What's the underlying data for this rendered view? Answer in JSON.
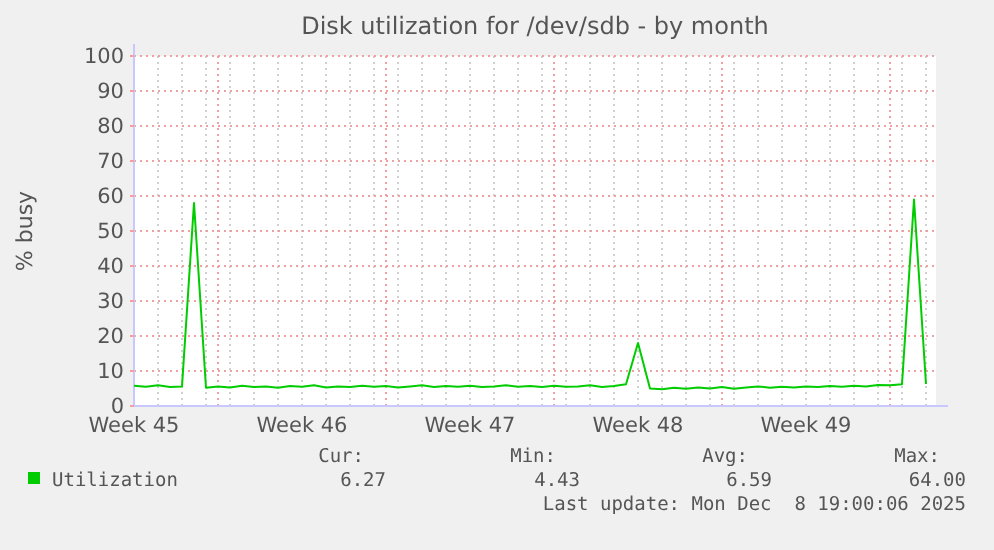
{
  "chart_data": {
    "type": "line",
    "title": "Disk utilization for /dev/sdb - by month",
    "ylabel": "% busy",
    "categories": [
      "Week 45",
      null,
      null,
      null,
      null,
      null,
      null,
      null,
      null,
      null,
      null,
      null,
      null,
      null,
      "Week 46",
      null,
      null,
      null,
      null,
      null,
      null,
      null,
      null,
      null,
      null,
      null,
      null,
      null,
      "Week 47",
      null,
      null,
      null,
      null,
      null,
      null,
      null,
      null,
      null,
      null,
      null,
      null,
      null,
      "Week 48",
      null,
      null,
      null,
      null,
      null,
      null,
      null,
      null,
      null,
      null,
      null,
      null,
      null,
      "Week 49",
      null,
      null,
      null,
      null,
      null,
      null,
      null,
      null,
      null,
      null
    ],
    "ylim": [
      0,
      100
    ],
    "yticks": [
      0,
      10,
      20,
      30,
      40,
      50,
      60,
      70,
      80,
      90,
      100
    ],
    "grid": true,
    "legend": "bottom left",
    "marker": "none",
    "line_style": "solid",
    "series": [
      {
        "name": "Utilization",
        "color": "#00cc00",
        "values": [
          5.8,
          5.5,
          5.9,
          5.4,
          5.6,
          58,
          5.2,
          5.6,
          5.3,
          5.8,
          5.4,
          5.6,
          5.2,
          5.7,
          5.5,
          5.9,
          5.3,
          5.6,
          5.4,
          5.8,
          5.5,
          5.7,
          5.3,
          5.6,
          5.9,
          5.4,
          5.7,
          5.5,
          5.8,
          5.4,
          5.6,
          5.9,
          5.5,
          5.7,
          5.4,
          5.8,
          5.5,
          5.6,
          5.9,
          5.4,
          5.7,
          6.2,
          18,
          5.0,
          4.8,
          5.2,
          4.9,
          5.3,
          5.0,
          5.4,
          4.9,
          5.3,
          5.6,
          5.2,
          5.5,
          5.3,
          5.6,
          5.4,
          5.7,
          5.5,
          5.8,
          5.6,
          6.0,
          5.9,
          6.2,
          59,
          6.3
        ]
      }
    ],
    "annotations": [
      "Cur:",
      "Min:",
      "Avg:",
      "Max:",
      "6.27",
      "4.43",
      "6.59",
      "64.00",
      "Last update: Mon Dec  8 19:00:06 2025"
    ]
  }
}
